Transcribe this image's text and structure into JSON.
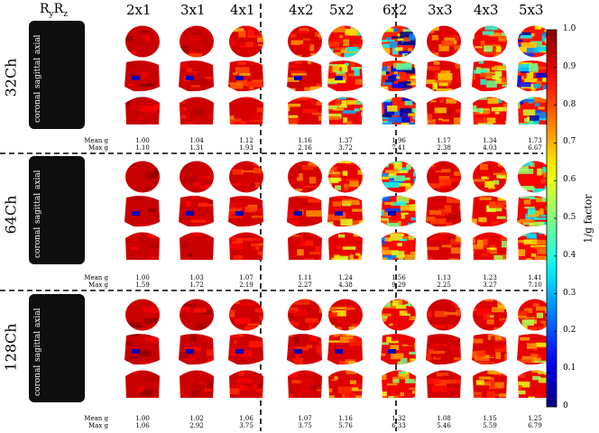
{
  "header": {
    "ryrz": "RyRz"
  },
  "columns": [
    "2x1",
    "3x1",
    "4x1",
    "4x2",
    "5x2",
    "6x2",
    "3x3",
    "4x3",
    "5x3"
  ],
  "row_groups": [
    {
      "label": "32Ch",
      "mean_label": "Mean g",
      "max_label": "Max g",
      "mean": [
        "1.00",
        "1.04",
        "1.12",
        "1.16",
        "1.37",
        "1.96",
        "1.17",
        "1.34",
        "1.73"
      ],
      "max": [
        "1.10",
        "1.31",
        "1.93",
        "2.16",
        "3.72",
        "7.41",
        "2.38",
        "4.03",
        "6.67"
      ]
    },
    {
      "label": "64Ch",
      "mean_label": "Mean g",
      "max_label": "Max g",
      "mean": [
        "1.00",
        "1.03",
        "1.07",
        "1.11",
        "1.24",
        "1.56",
        "1.13",
        "1.23",
        "1.41"
      ],
      "max": [
        "1.59",
        "1.72",
        "2.19",
        "2.27",
        "4.38",
        "9.29",
        "2.25",
        "3.27",
        "7.10"
      ]
    },
    {
      "label": "128Ch",
      "mean_label": "Mean g",
      "max_label": "Max g",
      "mean": [
        "1.00",
        "1.02",
        "1.06",
        "1.07",
        "1.16",
        "1.32",
        "1.08",
        "1.15",
        "1.25"
      ],
      "max": [
        "1.06",
        "2.92",
        "3.75",
        "3.75",
        "5.76",
        "6.33",
        "5.46",
        "5.59",
        "6.79"
      ]
    }
  ],
  "views": {
    "axial": "axial",
    "sagittal": "sagittal",
    "coronal": "coronal"
  },
  "colorbar": {
    "label": "1/g factor",
    "ticks": [
      "1.0",
      "0.9",
      "0.8",
      "0.7",
      "0.6",
      "0.5",
      "0.4",
      "0.3",
      "0.2",
      "0.1",
      "0"
    ],
    "range": [
      0,
      1
    ],
    "colormap": "jet"
  }
}
